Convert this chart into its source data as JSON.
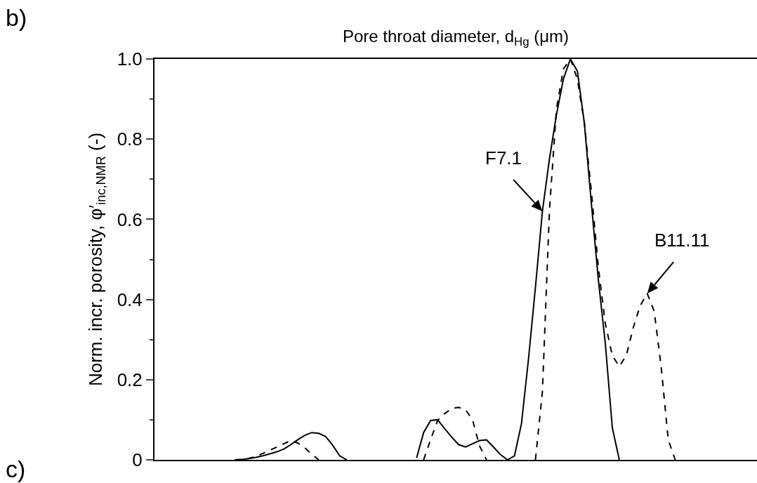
{
  "chart_data": {
    "type": "line",
    "xlabel": "Pore throat diameter, d$_{Hg}$ (μm)",
    "ylabel": "Norm. incr. porosity, φ′$_{inc,NMR}$ (-)",
    "categories": [
      null,
      null,
      null,
      null,
      null,
      null,
      null,
      null,
      null,
      null,
      null,
      null,
      null,
      null,
      null,
      null,
      null,
      null,
      null,
      null,
      null,
      null,
      null,
      null,
      null,
      null,
      null,
      null,
      null,
      null,
      null,
      null,
      null,
      null,
      null,
      null,
      null,
      null,
      null,
      null,
      null,
      null,
      null,
      null,
      null,
      null,
      null,
      null,
      null,
      null,
      null,
      null,
      null,
      null,
      null,
      null,
      null,
      null,
      null,
      null,
      null,
      null,
      null,
      null,
      null,
      null,
      null,
      null,
      null,
      null,
      null,
      null,
      null,
      null,
      null,
      null,
      null,
      null,
      null,
      null,
      null,
      null,
      null,
      null,
      null,
      null
    ],
    "series": [
      {
        "name": "F7.1",
        "color": "#000000",
        "line_style": "solid",
        "values": [
          null,
          null,
          null,
          null,
          null,
          null,
          null,
          null,
          null,
          null,
          null,
          0,
          0.001,
          0.003,
          0.006,
          0.01,
          0.015,
          0.02,
          0.027,
          0.038,
          0.05,
          0.061,
          0.068,
          0.066,
          0.058,
          0.036,
          0.01,
          0,
          null,
          null,
          null,
          null,
          null,
          null,
          null,
          null,
          null,
          0.005,
          0.068,
          0.098,
          0.1,
          0.078,
          0.057,
          0.038,
          0.032,
          0.04,
          0.048,
          0.05,
          0.032,
          0.013,
          0,
          0.01,
          0.09,
          0.25,
          0.43,
          0.62,
          0.75,
          0.86,
          0.95,
          1.0,
          0.97,
          0.84,
          0.64,
          0.45,
          0.29,
          0.08,
          0,
          null,
          null,
          null,
          null,
          null,
          null,
          null,
          null,
          null,
          null,
          null,
          null,
          null,
          null,
          null,
          null,
          null,
          null,
          null
        ]
      },
      {
        "name": "B11.11",
        "color": "#000000",
        "line_style": "dashed",
        "values": [
          null,
          null,
          null,
          null,
          null,
          null,
          null,
          null,
          null,
          null,
          null,
          0,
          0.001,
          0.004,
          0.008,
          0.016,
          0.024,
          0.032,
          0.04,
          0.048,
          0.042,
          0.03,
          0.014,
          0,
          null,
          null,
          null,
          null,
          null,
          null,
          null,
          null,
          null,
          null,
          null,
          null,
          null,
          null,
          0,
          0.05,
          0.098,
          0.115,
          0.128,
          0.131,
          0.125,
          0.1,
          0.035,
          0,
          null,
          null,
          null,
          null,
          null,
          null,
          0,
          0.17,
          0.62,
          0.874,
          0.975,
          1.0,
          0.95,
          0.84,
          0.67,
          0.48,
          0.34,
          0.26,
          0.233,
          0.26,
          0.33,
          0.385,
          0.415,
          0.37,
          0.23,
          0.05,
          0,
          null,
          null,
          null,
          null,
          null,
          null,
          null,
          null,
          null,
          null,
          null
        ]
      }
    ],
    "ylim": [
      0,
      1
    ],
    "yticks": [
      0,
      0.2,
      0.4,
      0.6,
      0.8,
      {
        "value": 1,
        "label": "1.0"
      }
    ],
    "grid": false,
    "legend": false,
    "marker": "none",
    "annotations": [
      "b)",
      "c)"
    ]
  }
}
